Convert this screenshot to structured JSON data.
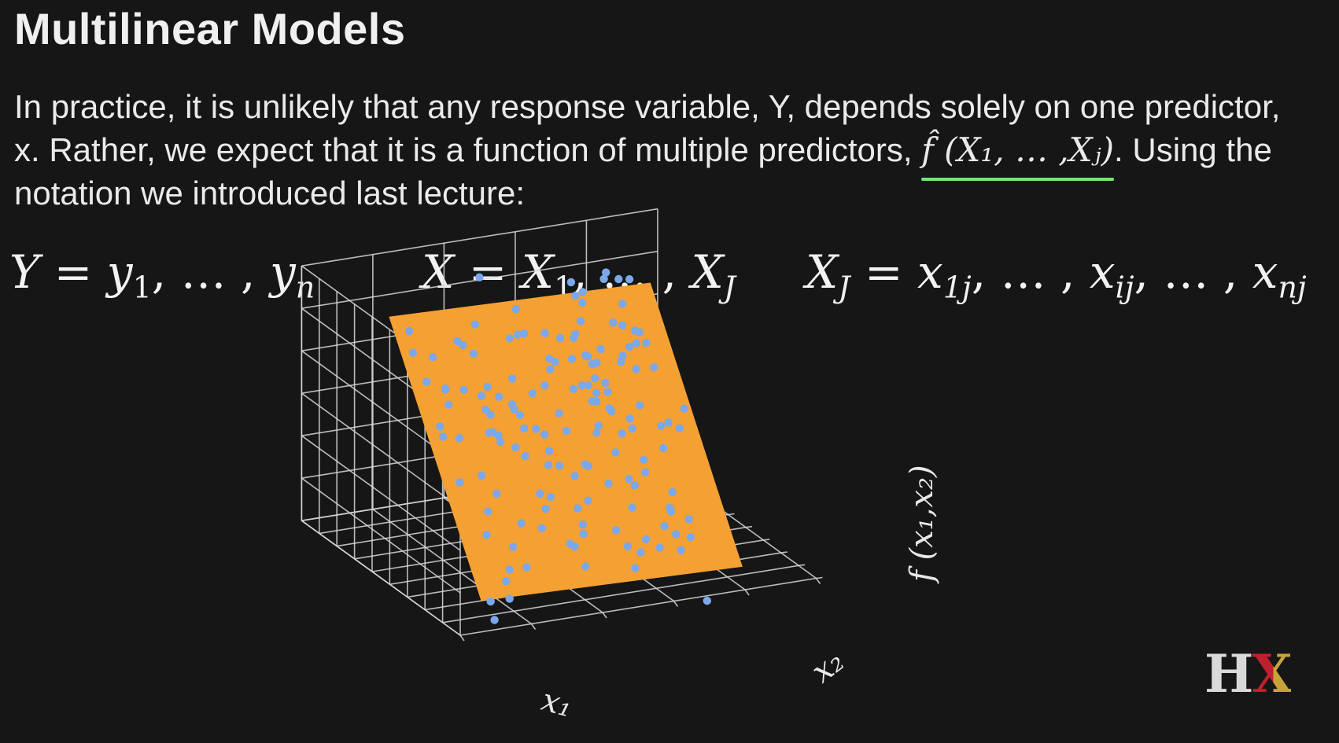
{
  "slide": {
    "title": "Multilinear Models",
    "intro_part1": "In practice, it is unlikely that any response variable, Y, depends solely on one predictor, x. Rather, we expect that it is a function of multiple predictors,",
    "intro_math": "f̂ (X₁, … ,Xⱼ)",
    "intro_part2": ". Using the notation we introduced last lecture:"
  },
  "equations": {
    "y": {
      "lhs": "Y",
      "op": " = ",
      "rhs_1": "y",
      "sub_1": "1",
      "mid": ", … , ",
      "rhs_n": "y",
      "sub_n": "n"
    },
    "x": {
      "lhs": "X",
      "op": " = ",
      "rhs_1": "X",
      "sub_1": "1",
      "mid": ", … , ",
      "rhs_n": "X",
      "sub_n": "J"
    },
    "xj": {
      "lhs": "X",
      "lhs_sub": "J",
      "op": " = ",
      "a": "x",
      "a_sub": "1j",
      "mid1": ", … , ",
      "b": "x",
      "b_sub": "ij",
      "mid2": ", … , ",
      "c": "x",
      "c_sub": "nj"
    }
  },
  "plot": {
    "x1_label": "x₁",
    "x2_label": "x₂",
    "z_label": "f (x₁,x₂)",
    "plane_color": "#f5a033",
    "point_color": "#7aa8ea",
    "grid_color": "#d8d8d8"
  },
  "logo": {
    "h": "H",
    "x": "X",
    "h_color": "#d9d9d9",
    "x_color": "#c01f2e",
    "x_color2": "#c7a33a"
  }
}
